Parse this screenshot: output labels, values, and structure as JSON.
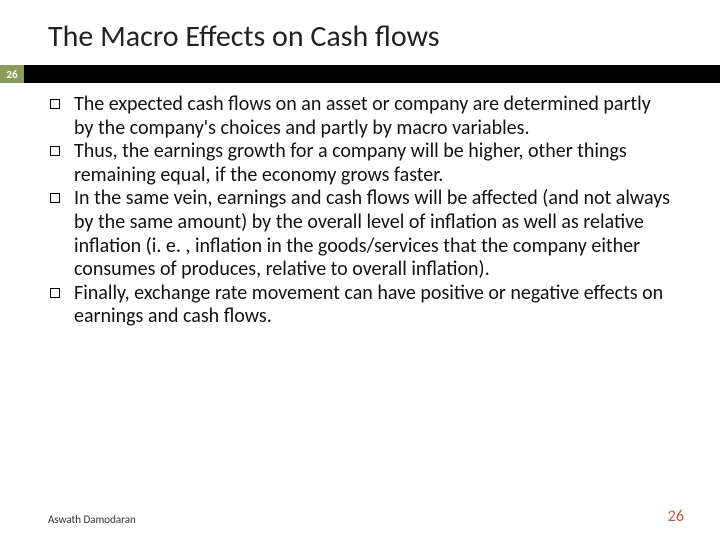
{
  "slide": {
    "title": "The Macro Effects on Cash flows",
    "badge_number": "26",
    "bullets": [
      "The expected cash flows on an asset or company are determined partly by the company's choices and partly by macro variables.",
      "Thus, the earnings growth for a company will be higher, other things remaining equal, if the economy grows faster.",
      "In the same vein, earnings and cash flows will be affected (and not always by the same amount) by the overall level of inflation as well as relative inflation (i. e. , inflation in the goods/services that the company either consumes of produces, relative to overall inflation).",
      "Finally, exchange rate movement can have positive or negative effects on earnings and cash flows."
    ],
    "author": "Aswath Damodaran",
    "page_number": "26"
  },
  "style": {
    "title_fontsize": 30,
    "body_fontsize": 20,
    "badge_bg": "#8a9a5b",
    "bar_bg": "#000000",
    "pagenum_color": "#b85c44",
    "background": "#ffffff",
    "text_color": "#111111"
  }
}
